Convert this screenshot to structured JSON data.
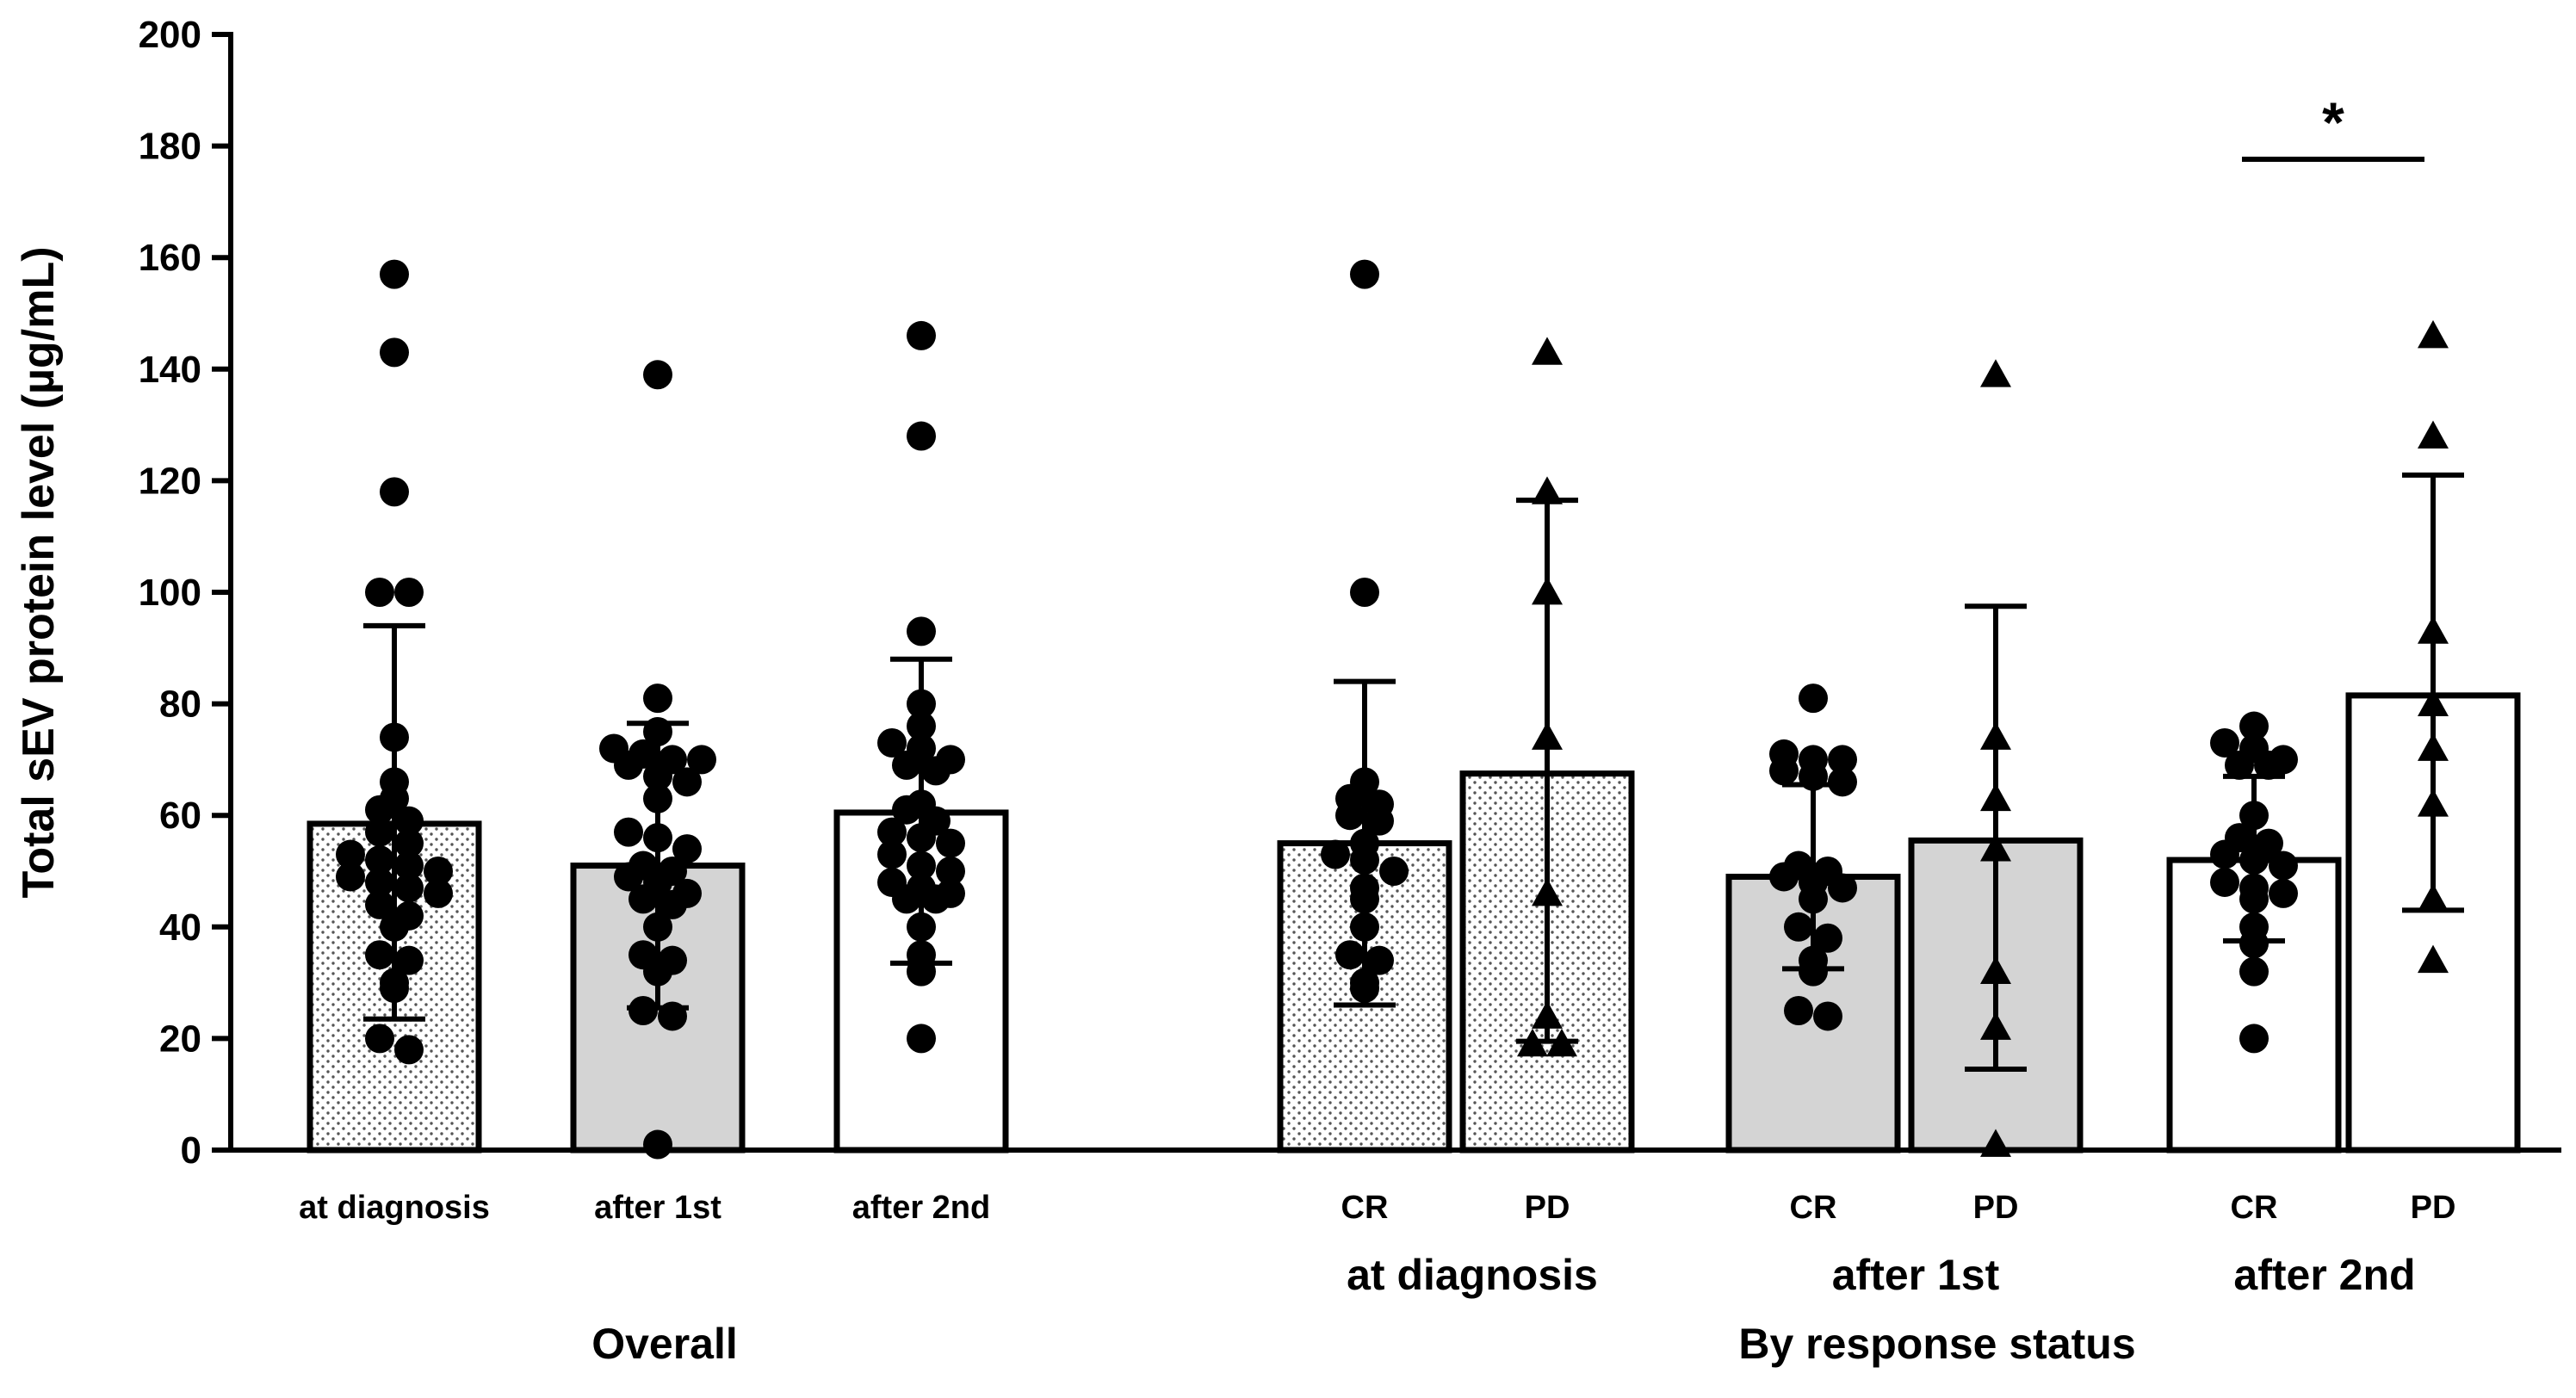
{
  "chart_data": {
    "type": "bar",
    "title": "",
    "ylabel": "Total sEV protein level (µg/mL)",
    "ylim": [
      0,
      200
    ],
    "yticks": [
      0,
      20,
      40,
      60,
      80,
      100,
      120,
      140,
      160,
      180,
      200
    ],
    "colors": {
      "gray_fill": "#d4d4d4",
      "white_fill": "#ffffff",
      "stroke": "#000000",
      "dot": "#000000"
    },
    "group_labels": {
      "overall": "Overall",
      "by_response": "By response status",
      "sub_at_diagnosis": "at diagnosis",
      "sub_after_1st": "after 1st",
      "sub_after_2nd": "after 2nd"
    },
    "significance": {
      "label": "*",
      "between": [
        "CR after 2nd",
        "PD after 2nd"
      ]
    },
    "bars": [
      {
        "id": "overall-at-diagnosis",
        "label": "at diagnosis",
        "fill": "dotted",
        "mean": 58.5,
        "err_low": 23.5,
        "err_high": 94,
        "marker": "circle",
        "points": [
          157,
          143,
          118,
          100,
          100,
          74,
          66,
          63,
          61,
          59,
          57,
          55,
          53,
          52,
          51,
          50,
          49,
          48,
          47,
          46,
          44,
          42,
          40,
          35,
          34,
          30,
          29,
          20,
          18
        ]
      },
      {
        "id": "overall-after-1st",
        "label": "after 1st",
        "fill": "gray",
        "mean": 51,
        "err_low": 25.5,
        "err_high": 76.5,
        "marker": "circle",
        "points": [
          139,
          81,
          75,
          72,
          71,
          70,
          70,
          69,
          67,
          66,
          63,
          57,
          56,
          54,
          51,
          50,
          49,
          48,
          46,
          45,
          44,
          40,
          35,
          34,
          32,
          25,
          24,
          1
        ]
      },
      {
        "id": "overall-after-2nd",
        "label": "after 2nd",
        "fill": "white",
        "mean": 60.5,
        "err_low": 33.5,
        "err_high": 88,
        "marker": "circle",
        "points": [
          146,
          128,
          93,
          80,
          76,
          73,
          72,
          70,
          69,
          68,
          62,
          61,
          59,
          57,
          56,
          55,
          53,
          51,
          50,
          48,
          47,
          46,
          45,
          45,
          40,
          35,
          32,
          20
        ]
      },
      {
        "id": "dx-cr",
        "label": "CR",
        "fill": "dotted",
        "mean": 55,
        "err_low": 26,
        "err_high": 84,
        "marker": "circle",
        "points": [
          157,
          100,
          66,
          63,
          62,
          60,
          59,
          55,
          53,
          52,
          50,
          47,
          45,
          40,
          35,
          34,
          30,
          29
        ]
      },
      {
        "id": "dx-pd",
        "label": "PD",
        "fill": "dotted",
        "mean": 67.5,
        "err_low": 19.5,
        "err_high": 116.5,
        "marker": "triangle",
        "points": [
          143,
          118,
          100,
          74,
          46,
          24,
          19,
          19
        ]
      },
      {
        "id": "first-cr",
        "label": "CR",
        "fill": "gray",
        "mean": 49,
        "err_low": 32.5,
        "err_high": 65.5,
        "marker": "circle",
        "points": [
          81,
          71,
          70,
          70,
          68,
          67,
          66,
          51,
          50,
          49,
          48,
          47,
          45,
          40,
          38,
          34,
          32,
          25,
          24
        ]
      },
      {
        "id": "first-pd",
        "label": "PD",
        "fill": "gray",
        "mean": 55.5,
        "err_low": 14.5,
        "err_high": 97.5,
        "marker": "triangle",
        "points": [
          139,
          74,
          63,
          54,
          32,
          22,
          1
        ]
      },
      {
        "id": "second-cr",
        "label": "CR",
        "fill": "white",
        "mean": 52,
        "err_low": 37.5,
        "err_high": 67,
        "marker": "circle",
        "points": [
          76,
          73,
          72,
          70,
          69,
          69,
          60,
          56,
          55,
          53,
          52,
          51,
          48,
          47,
          46,
          45,
          40,
          37,
          32,
          20
        ]
      },
      {
        "id": "second-pd",
        "label": "PD",
        "fill": "white",
        "mean": 81.5,
        "err_low": 43,
        "err_high": 121,
        "marker": "triangle",
        "points": [
          146,
          128,
          93,
          80,
          72,
          62,
          45,
          34
        ]
      }
    ]
  }
}
